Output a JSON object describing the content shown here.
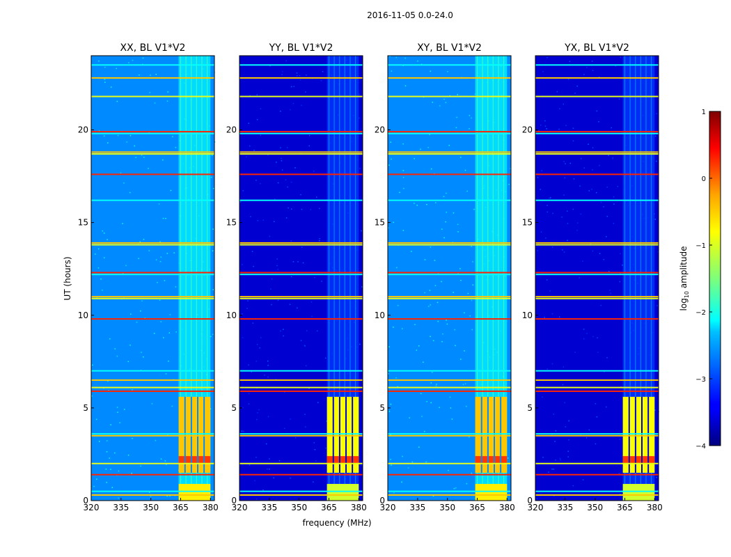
{
  "figure": {
    "suptitle": "2016-11-05 0.0-24.0",
    "xlabel": "frequency (MHz)",
    "ylabel": "UT (hours)"
  },
  "colorbar": {
    "label_prefix": "log",
    "label_sub": "10",
    "label_suffix": " amplitude",
    "ticks": [
      {
        "value": 1,
        "label": "1"
      },
      {
        "value": 0,
        "label": "0"
      },
      {
        "value": -1,
        "label": "−1"
      },
      {
        "value": -2,
        "label": "−2"
      },
      {
        "value": -3,
        "label": "−3"
      },
      {
        "value": -4,
        "label": "−4"
      }
    ],
    "range": [
      -4,
      1
    ],
    "colormap": "jet"
  },
  "chart_data": {
    "type": "heatmap",
    "xlim": [
      320,
      382
    ],
    "ylim": [
      0,
      24
    ],
    "xticks": [
      320,
      335,
      350,
      365,
      380
    ],
    "yticks": [
      0,
      5,
      10,
      15,
      20
    ],
    "panels": [
      {
        "id": "xx",
        "title": "XX, BL V1*V2",
        "background_level": -2.7,
        "band_level": -0.6
      },
      {
        "id": "yy",
        "title": "YY, BL V1*V2",
        "background_level": -3.6,
        "band_level": -0.9
      },
      {
        "id": "xy",
        "title": "XY, BL V1*V2",
        "background_level": -2.7,
        "band_level": -0.6
      },
      {
        "id": "yx",
        "title": "YX, BL V1*V2",
        "background_level": -3.6,
        "band_level": -0.9
      }
    ],
    "rfi_band_mhz": [
      364,
      380
    ],
    "bright_epoch_hours": [
      1.5,
      5.6
    ],
    "peak_epoch_hours": [
      2.0,
      2.4
    ],
    "peak_level": 0.1,
    "horizontal_rfi_lines_hours": [
      0.3,
      0.5,
      1.4,
      2.0,
      3.5,
      3.6,
      5.9,
      6.1,
      6.5,
      7.0,
      9.8,
      10.9,
      11.0,
      12.2,
      12.3,
      13.8,
      13.9,
      16.2,
      17.6,
      18.7,
      18.8,
      19.8,
      19.9,
      21.8,
      22.8,
      23.5
    ]
  }
}
